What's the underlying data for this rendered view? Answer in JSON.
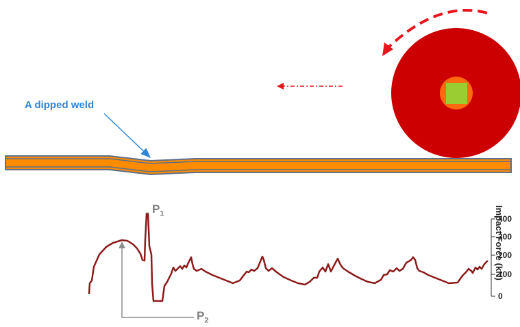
{
  "annotation": {
    "weld_label": "A dipped weld",
    "p1_main": "P",
    "p1_sub": "1",
    "p2_main": "P",
    "p2_sub": "2"
  },
  "axis": {
    "title": "Impact Force (kN)",
    "ticks": [
      "400",
      "300",
      "200",
      "100",
      "0"
    ],
    "tick_values": [
      400,
      300,
      200,
      100,
      0
    ]
  },
  "colors": {
    "wheel": "#cc0000",
    "hub": "#ff6a10",
    "axle": "#9acd32",
    "rail": "#ff8c00",
    "rail_edge": "#5d6f8a",
    "force_curve": "#8b1a1a",
    "weld_label": "#2f86d6",
    "peak_markers": "#7f7f7f"
  },
  "icons": {
    "rotation": "curved-arrow-counterclockwise",
    "direction": "dashed-arrow-left"
  }
}
